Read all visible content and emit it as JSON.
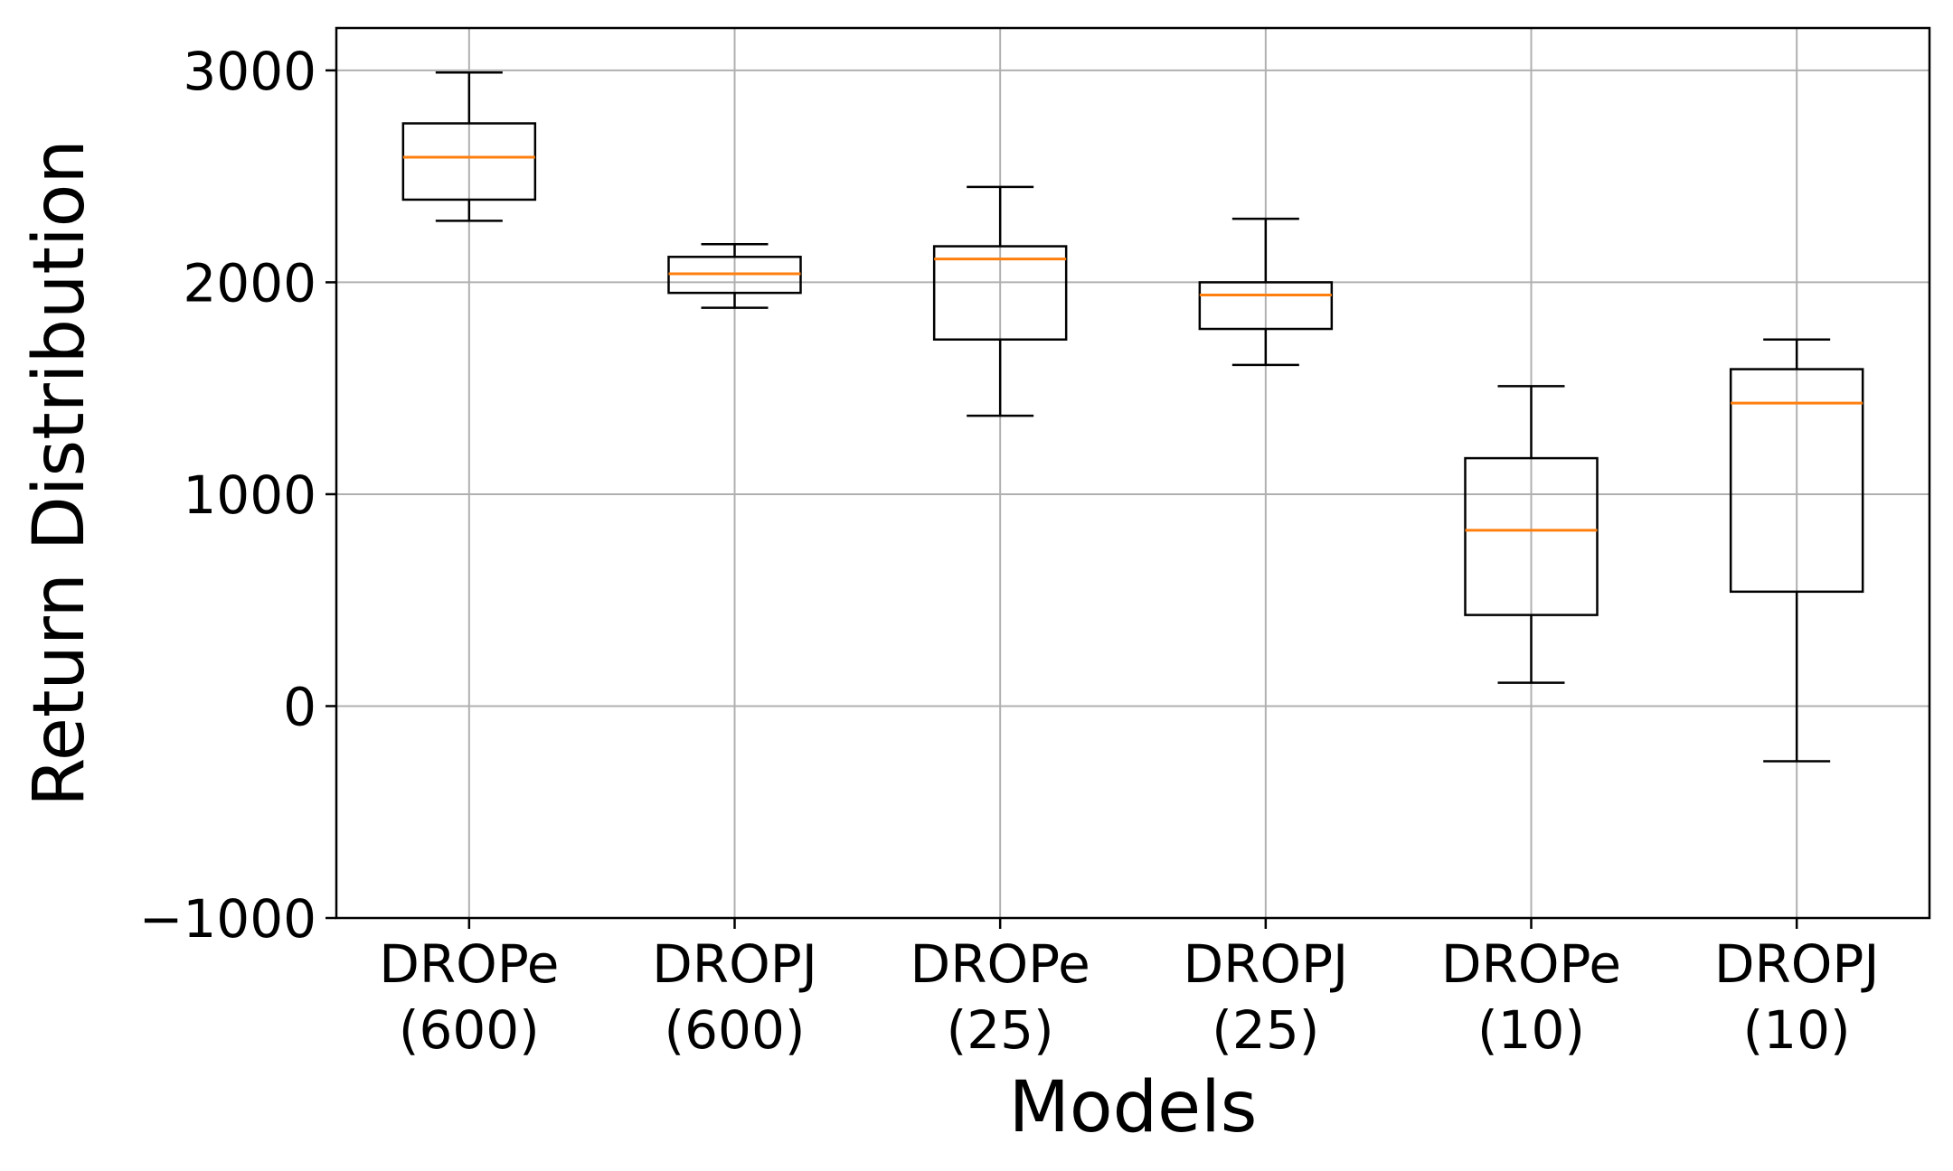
{
  "chart_data": {
    "type": "box",
    "categories": [
      [
        "DROPe",
        "(600)"
      ],
      [
        "DROPJ",
        "(600)"
      ],
      [
        "DROPe",
        "(25)"
      ],
      [
        "DROPJ",
        "(25)"
      ],
      [
        "DROPe",
        "(10)"
      ],
      [
        "DROPJ",
        "(10)"
      ]
    ],
    "boxes": [
      {
        "whisker_low": 2290,
        "q1": 2390,
        "median": 2590,
        "q3": 2750,
        "whisker_high": 2990
      },
      {
        "whisker_low": 1880,
        "q1": 1950,
        "median": 2040,
        "q3": 2120,
        "whisker_high": 2180
      },
      {
        "whisker_low": 1370,
        "q1": 1730,
        "median": 2110,
        "q3": 2170,
        "whisker_high": 2450
      },
      {
        "whisker_low": 1610,
        "q1": 1780,
        "median": 1940,
        "q3": 2000,
        "whisker_high": 2300
      },
      {
        "whisker_low": 110,
        "q1": 430,
        "median": 830,
        "q3": 1170,
        "whisker_high": 1510
      },
      {
        "whisker_low": -260,
        "q1": 540,
        "median": 1430,
        "q3": 1590,
        "whisker_high": 1730
      }
    ],
    "xlabel": "Models",
    "ylabel": "Return Distribution",
    "ylim": [
      -1000,
      3200
    ],
    "yticks": [
      -1000,
      0,
      1000,
      2000,
      3000
    ],
    "ytick_labels": [
      "−1000",
      "0",
      "1000",
      "2000",
      "3000"
    ],
    "grid": true,
    "colors": {
      "box": "#000000",
      "median": "#ff7f0e",
      "grid": "#b0b0b0"
    }
  }
}
